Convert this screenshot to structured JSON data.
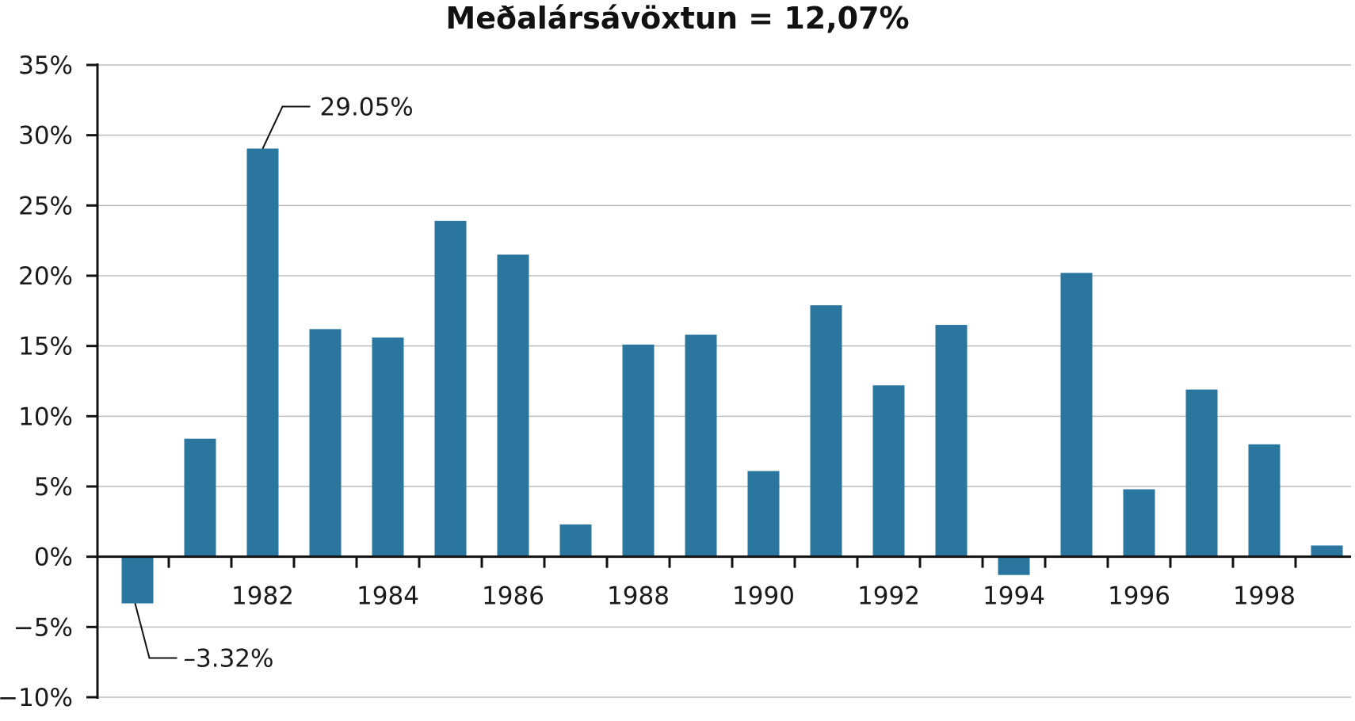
{
  "chart_data": {
    "type": "bar",
    "title": "Meðalársávöxtun = 12,07%",
    "xlabel": "",
    "ylabel": "",
    "x": [
      1980,
      1981,
      1982,
      1983,
      1984,
      1985,
      1986,
      1987,
      1988,
      1989,
      1990,
      1991,
      1992,
      1993,
      1994,
      1995,
      1996,
      1997,
      1998,
      1999
    ],
    "values": [
      -3.32,
      8.4,
      29.05,
      16.2,
      15.6,
      23.9,
      21.5,
      2.3,
      15.1,
      15.8,
      6.1,
      17.9,
      12.2,
      16.5,
      -1.3,
      20.2,
      4.8,
      11.9,
      8.0,
      0.8
    ],
    "x_tick_labels": [
      "1982",
      "1984",
      "1986",
      "1988",
      "1990",
      "1992",
      "1994",
      "1996",
      "1998"
    ],
    "y_tick_labels": [
      "35%",
      "30%",
      "25%",
      "20%",
      "15%",
      "10%",
      "5%",
      "0%",
      "−5%",
      "−10%"
    ],
    "ylim": [
      -10,
      35
    ],
    "ytick_step": 5,
    "grid": true,
    "legend": "none",
    "bar_color": "#2a769e",
    "annotations": [
      {
        "year": 1982,
        "value": 29.05,
        "text": "29.05%"
      },
      {
        "year": 1980,
        "value": -3.32,
        "text": "–3.32%"
      }
    ]
  }
}
